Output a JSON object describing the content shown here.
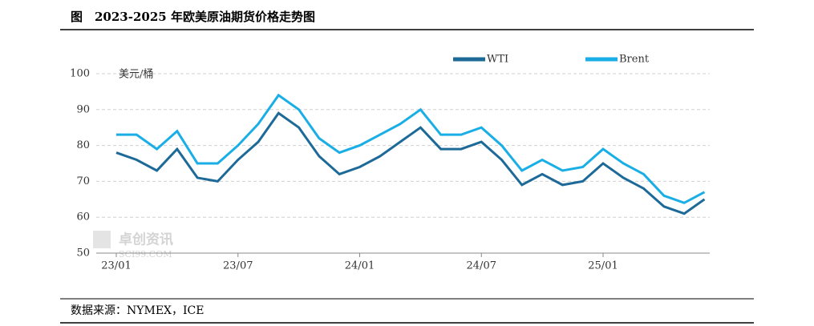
{
  "chart_data": {
    "type": "line",
    "title": "图　2023-2025 年欧美原油期货价格走势图",
    "y_unit": "美元/桶",
    "source": "数据来源：NYMEX，ICE",
    "watermark": [
      "卓创资讯",
      "SCI99.COM"
    ],
    "x": [
      "23/01",
      "23/02",
      "23/03",
      "23/04",
      "23/05",
      "23/06",
      "23/07",
      "23/08",
      "23/09",
      "23/10",
      "23/11",
      "23/12",
      "24/01",
      "24/02",
      "24/03",
      "24/04",
      "24/05",
      "24/06",
      "24/07",
      "24/08",
      "24/09",
      "24/10",
      "24/11",
      "24/12",
      "25/01",
      "25/02",
      "25/03",
      "25/04",
      "25/05",
      "25/06"
    ],
    "xticks": [
      "23/01",
      "23/07",
      "24/01",
      "24/07",
      "25/01"
    ],
    "ylim": [
      50,
      100
    ],
    "yticks": [
      50,
      60,
      70,
      80,
      90,
      100
    ],
    "grid": true,
    "legend": "top",
    "series": [
      {
        "name": "WTI",
        "color": "#1d6a98",
        "values": [
          78,
          76,
          73,
          79,
          71,
          70,
          76,
          81,
          89,
          85,
          77,
          72,
          74,
          77,
          81,
          85,
          79,
          79,
          81,
          76,
          69,
          72,
          69,
          70,
          75,
          71,
          68,
          63,
          61,
          65
        ]
      },
      {
        "name": "Brent",
        "color": "#19aee6",
        "values": [
          83,
          83,
          79,
          84,
          75,
          75,
          80,
          86,
          94,
          90,
          82,
          78,
          80,
          83,
          86,
          90,
          83,
          83,
          85,
          80,
          73,
          76,
          73,
          74,
          79,
          75,
          72,
          66,
          64,
          67
        ]
      }
    ]
  }
}
